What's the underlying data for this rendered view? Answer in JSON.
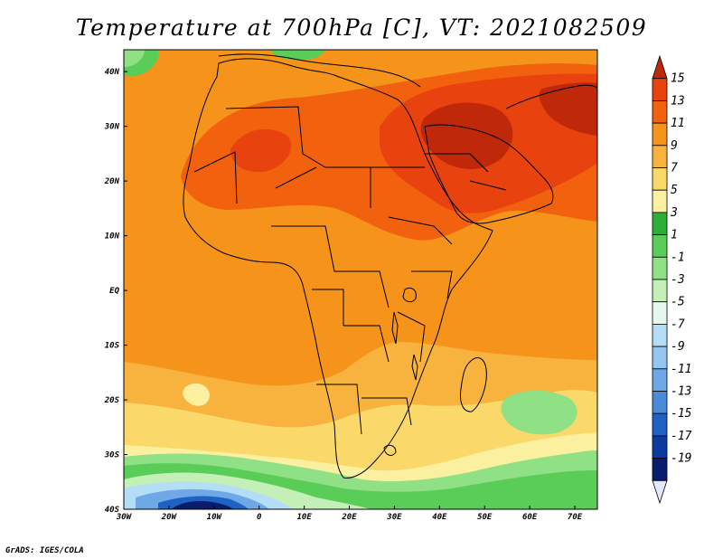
{
  "title": "Temperature at 700hPa [C], VT: 2021082509",
  "credit": "GrADS: IGES/COLA",
  "map": {
    "type": "filled-contour",
    "variable": "Temperature at 700hPa",
    "units": "C",
    "valid_time": "2021082509",
    "lon_range": [
      -30,
      75
    ],
    "lat_range": [
      -40,
      44
    ],
    "lon_ticks": [
      {
        "value": -30,
        "label": "30W"
      },
      {
        "value": -20,
        "label": "20W"
      },
      {
        "value": -10,
        "label": "10W"
      },
      {
        "value": 0,
        "label": "0"
      },
      {
        "value": 10,
        "label": "10E"
      },
      {
        "value": 20,
        "label": "20E"
      },
      {
        "value": 30,
        "label": "30E"
      },
      {
        "value": 40,
        "label": "40E"
      },
      {
        "value": 50,
        "label": "50E"
      },
      {
        "value": 60,
        "label": "60E"
      },
      {
        "value": 70,
        "label": "70E"
      }
    ],
    "lat_ticks": [
      {
        "value": 40,
        "label": "40N"
      },
      {
        "value": 30,
        "label": "30N"
      },
      {
        "value": 20,
        "label": "20N"
      },
      {
        "value": 10,
        "label": "10N"
      },
      {
        "value": 0,
        "label": "EQ"
      },
      {
        "value": -10,
        "label": "10S"
      },
      {
        "value": -20,
        "label": "20S"
      },
      {
        "value": -30,
        "label": "30S"
      },
      {
        "value": -40,
        "label": "40S"
      }
    ]
  },
  "colorbar": {
    "levels": [
      15,
      13,
      11,
      9,
      7,
      5,
      3,
      1,
      -1,
      -3,
      -5,
      -7,
      -9,
      -11,
      -13,
      -15,
      -17,
      -19
    ],
    "labels": [
      "15",
      "13",
      "11",
      "9",
      "7",
      "5",
      "3",
      "1",
      "-1",
      "-3",
      "-5",
      "-7",
      "-9",
      "-11",
      "-13",
      "-15",
      "-17",
      "-19"
    ],
    "colors": [
      "#c0280a",
      "#e8420f",
      "#f2620e",
      "#f5931a",
      "#f8b23e",
      "#fbd86a",
      "#fbf0a0",
      "#2eae36",
      "#5acc58",
      "#90e086",
      "#c4f0b8",
      "#e4f8f0",
      "#b4ddf6",
      "#94c6f0",
      "#6ea8e6",
      "#4a8ad8",
      "#2062c4",
      "#0c3aa0",
      "#081e6c",
      "#e6e6fa"
    ]
  }
}
